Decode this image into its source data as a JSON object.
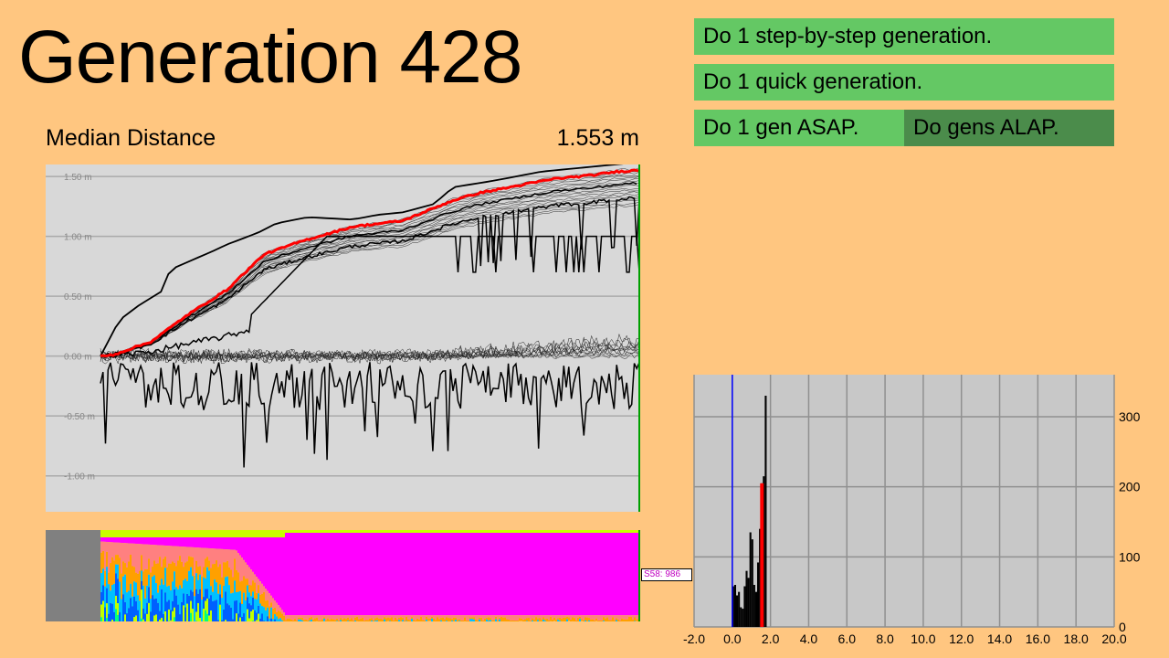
{
  "header": {
    "title": "Generation 428",
    "median_label": "Median Distance",
    "median_value": "1.553 m"
  },
  "buttons": {
    "step_by_step": "Do 1 step-by-step generation.",
    "quick": "Do 1 quick generation.",
    "asap": "Do 1 gen ASAP.",
    "alap": "Do gens ALAP."
  },
  "species_tag": "S58: 986",
  "colors": {
    "background": "#ffc680",
    "button": "#64c864",
    "button_active": "#4b8c4b",
    "median_line": "#ff0000",
    "histogram_zero_line": "#0000ff",
    "main_chart_bg": "#d8d8d8",
    "histogram_bg": "#c8c8c8",
    "species_dominant": "#ff00ff"
  },
  "chart_data": [
    {
      "type": "line",
      "name": "distance-percentiles",
      "x": [
        0,
        428
      ],
      "xlim": [
        0,
        428
      ],
      "ylim": [
        -1.3,
        1.6
      ],
      "yticks": [
        1.5,
        1.0,
        0.5,
        0.0,
        -0.5,
        -1.0
      ],
      "ytick_labels": [
        "1.50 m",
        "1.00 m",
        "0.50 m",
        "0.00 m",
        "-0.50 m",
        "-1.00 m"
      ],
      "grid": true,
      "median": {
        "gens": [
          0,
          10,
          40,
          70,
          100,
          115,
          130,
          160,
          200,
          240,
          280,
          300,
          330,
          360,
          390,
          410,
          428
        ],
        "values": [
          0.0,
          0.01,
          0.12,
          0.35,
          0.55,
          0.7,
          0.85,
          0.96,
          1.08,
          1.13,
          1.3,
          1.36,
          1.42,
          1.48,
          1.51,
          1.54,
          1.553
        ]
      },
      "best": {
        "gens": [
          0,
          15,
          30,
          50,
          55,
          90,
          100,
          125,
          140,
          165,
          200,
          220,
          240,
          265,
          280,
          310,
          350,
          428
        ],
        "values": [
          0.0,
          0.3,
          0.42,
          0.55,
          0.72,
          0.88,
          0.93,
          1.03,
          1.11,
          1.16,
          1.14,
          1.18,
          1.2,
          1.27,
          1.41,
          1.46,
          1.54,
          1.62
        ]
      }
    },
    {
      "type": "area",
      "name": "species-composition",
      "x": [
        0,
        428
      ],
      "xlim": [
        0,
        428
      ],
      "ylim": [
        0,
        1
      ]
    },
    {
      "type": "bar",
      "name": "distance-histogram",
      "x_ticks": [
        -2.0,
        0.0,
        2.0,
        4.0,
        6.0,
        8.0,
        10.0,
        12.0,
        14.0,
        16.0,
        18.0,
        20.0
      ],
      "x_tick_labels": [
        "-2.0",
        "0.0",
        "2.0",
        "4.0",
        "6.0",
        "8.0",
        "10.0",
        "12.0",
        "14.0",
        "16.0",
        "18.0",
        "20.0"
      ],
      "xlim": [
        -2.0,
        20.0
      ],
      "y_ticks": [
        0,
        100,
        200,
        300
      ],
      "y_tick_labels": [
        "0",
        "100",
        "200",
        "300"
      ],
      "ylim": [
        0,
        360
      ],
      "bin_width": 0.1,
      "bins_start": [
        0.0,
        0.1,
        0.2,
        0.3,
        0.4,
        0.5,
        0.6,
        0.7,
        0.8,
        0.9,
        1.0,
        1.1,
        1.2,
        1.3,
        1.4,
        1.5,
        1.6,
        1.7
      ],
      "counts": [
        58,
        60,
        45,
        50,
        28,
        26,
        58,
        80,
        70,
        135,
        125,
        60,
        50,
        92,
        140,
        205,
        215,
        330
      ],
      "median_marker": 1.553,
      "zero_marker": 0.0,
      "grid": true
    }
  ]
}
